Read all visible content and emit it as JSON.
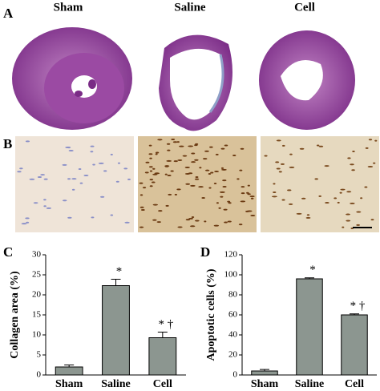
{
  "panels": {
    "a_label": "A",
    "b_label": "B",
    "columns": [
      "Sham",
      "Saline",
      "Cell"
    ]
  },
  "chart_data": [
    {
      "type": "bar",
      "panel_label": "C",
      "y_label": "Collagen area (%)",
      "categories": [
        "Sham",
        "Saline",
        "Cell"
      ],
      "values": [
        2.0,
        22.3,
        9.3
      ],
      "errors": [
        0.5,
        1.6,
        1.4
      ],
      "annotations": [
        null,
        "*",
        "* †"
      ],
      "color": "#8c9690",
      "ylim": [
        0,
        30
      ],
      "yticks": [
        0,
        5,
        10,
        15,
        20,
        25,
        30
      ]
    },
    {
      "type": "bar",
      "panel_label": "D",
      "y_label": "Apoptotic cells (%)",
      "categories": [
        "Sham",
        "Saline",
        "Cell"
      ],
      "values": [
        4,
        96,
        60
      ],
      "errors": [
        1.5,
        1,
        1
      ],
      "annotations": [
        null,
        "*",
        "* †"
      ],
      "color": "#8c9690",
      "ylim": [
        0,
        120
      ],
      "yticks": [
        0,
        20,
        40,
        60,
        80,
        100,
        120
      ]
    }
  ]
}
